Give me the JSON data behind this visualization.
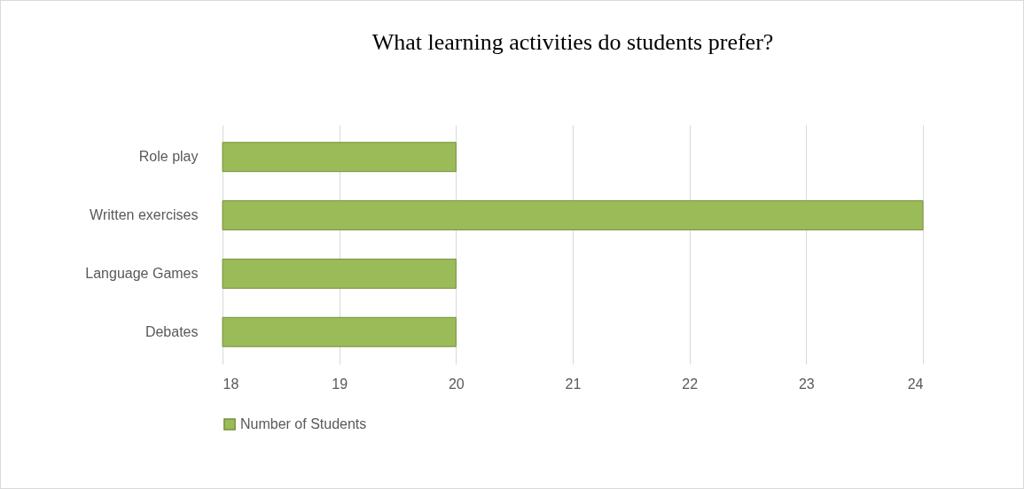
{
  "chart_data": {
    "type": "bar",
    "orientation": "horizontal",
    "title": "What learning activities do students prefer?",
    "categories": [
      "Role play",
      "Written exercises",
      "Language Games",
      "Debates"
    ],
    "series": [
      {
        "name": "Number of Students",
        "color": "#9bbb59",
        "values": [
          20,
          24,
          20,
          20
        ]
      }
    ],
    "xlim": [
      18,
      24
    ],
    "xticks": [
      18,
      19,
      20,
      21,
      22,
      23,
      24
    ],
    "grid": "x",
    "legend": "bottom"
  }
}
